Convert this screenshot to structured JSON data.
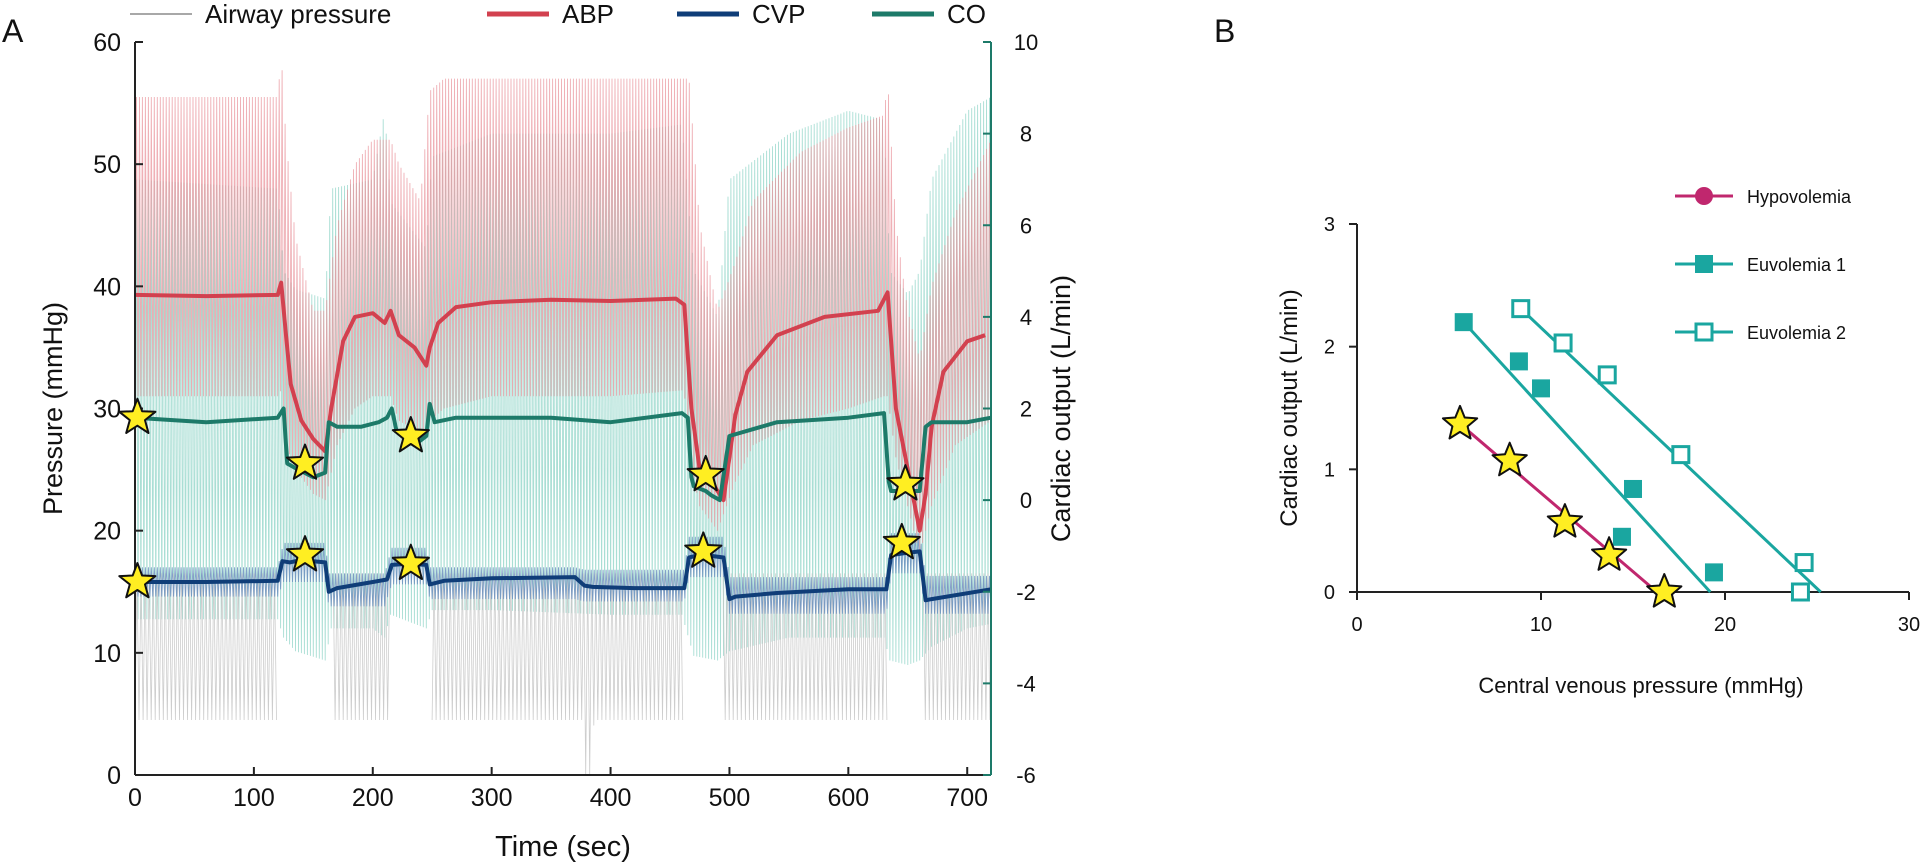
{
  "panels": {
    "a": "A",
    "b": "B"
  },
  "chart_data": [
    {
      "id": "A",
      "type": "line",
      "legend": {
        "placement": "top",
        "items": [
          {
            "label": "Airway pressure",
            "color": "#a8a8a8"
          },
          {
            "label": "ABP",
            "color": "#d2414f"
          },
          {
            "label": "CVP",
            "color": "#0f3d78"
          },
          {
            "label": "CO",
            "color": "#1d7a69"
          }
        ]
      },
      "xlabel": "Time (sec)",
      "ylabel": "Pressure (mmHg)",
      "y2label": "Cardiac output (L/min)",
      "xlim": [
        0,
        720
      ],
      "ylim": [
        0,
        60
      ],
      "y2lim": [
        -6,
        10
      ],
      "xticks": [
        "0",
        "100",
        "200",
        "300",
        "400",
        "500",
        "600",
        "700"
      ],
      "yticks": [
        "0",
        "10",
        "20",
        "30",
        "40",
        "50",
        "60"
      ],
      "y2ticks": [
        "-6",
        "-4",
        "-2",
        "0",
        "2",
        "4",
        "6",
        "8",
        "10"
      ],
      "series": [
        {
          "name": "ABP",
          "axis": "left",
          "color": "#d2414f",
          "x": [
            0,
            60,
            120,
            123,
            127,
            131,
            140,
            150,
            160,
            165,
            175,
            185,
            200,
            210,
            215,
            222,
            235,
            245,
            248,
            255,
            270,
            300,
            350,
            400,
            455,
            462,
            468,
            475,
            485,
            495,
            505,
            515,
            540,
            580,
            625,
            633,
            640,
            650,
            660,
            665,
            670,
            680,
            700,
            715
          ],
          "y": [
            39.3,
            39.2,
            39.3,
            40.3,
            36,
            32,
            29,
            27.5,
            26.5,
            30,
            35.5,
            37.5,
            37.8,
            37,
            38,
            36,
            35,
            33.5,
            35,
            37,
            38.3,
            38.7,
            38.9,
            38.8,
            39,
            38.5,
            30,
            25,
            24,
            22.5,
            29.5,
            33,
            36,
            37.5,
            38,
            39.5,
            30,
            25,
            20,
            23,
            28.5,
            33,
            35.5,
            36
          ]
        },
        {
          "name": "CVP",
          "axis": "left",
          "color": "#0f3d78",
          "x": [
            0,
            60,
            120,
            124,
            130,
            140,
            150,
            160,
            163,
            170,
            200,
            212,
            216,
            230,
            245,
            248,
            260,
            300,
            370,
            378,
            385,
            420,
            462,
            466,
            470,
            480,
            495,
            500,
            505,
            540,
            600,
            632,
            636,
            650,
            660,
            665,
            670,
            720
          ],
          "y": [
            15.8,
            15.8,
            15.9,
            17.5,
            17.4,
            17.6,
            17.5,
            17.4,
            15,
            15.3,
            15.8,
            16,
            17.2,
            17.3,
            17.2,
            15.6,
            15.9,
            16.1,
            16.2,
            15.5,
            15.4,
            15.3,
            15.3,
            17.8,
            17.9,
            18,
            17.8,
            14.4,
            14.6,
            14.9,
            15.2,
            15.2,
            18,
            18.2,
            18.3,
            14.3,
            14.4,
            15.2
          ]
        },
        {
          "name": "CO",
          "axis": "right",
          "color": "#1d7a69",
          "x": [
            0,
            60,
            120,
            125,
            128,
            135,
            150,
            160,
            163,
            170,
            190,
            205,
            212,
            216,
            220,
            235,
            245,
            248,
            252,
            270,
            300,
            350,
            400,
            460,
            465,
            468,
            470,
            480,
            485,
            492,
            500,
            540,
            600,
            630,
            634,
            636,
            645,
            660,
            665,
            670,
            700,
            720
          ],
          "y": [
            1.8,
            1.7,
            1.8,
            2,
            0.8,
            0.7,
            0.5,
            0.6,
            1.7,
            1.6,
            1.6,
            1.7,
            1.8,
            2,
            1.5,
            1.2,
            1.4,
            2.1,
            1.7,
            1.8,
            1.8,
            1.8,
            1.7,
            1.9,
            1.8,
            0.5,
            0.3,
            0.2,
            0.1,
            0,
            1.4,
            1.7,
            1.8,
            1.9,
            0.4,
            0.2,
            0.2,
            0.2,
            1.6,
            1.7,
            1.7,
            1.8
          ]
        }
      ],
      "bands": [
        {
          "name": "ABP",
          "color": "#e9959e",
          "x": [
            0,
            120,
            123,
            127,
            135,
            150,
            160,
            170,
            185,
            200,
            215,
            222,
            240,
            248,
            260,
            300,
            350,
            400,
            462,
            466,
            475,
            490,
            505,
            520,
            560,
            600,
            630,
            633,
            640,
            650,
            660,
            670,
            690,
            720
          ],
          "lo": [
            31,
            31,
            31.5,
            27,
            25,
            23,
            22.5,
            27,
            30,
            31,
            31,
            29,
            28,
            29,
            30,
            31,
            31,
            31,
            31.5,
            26,
            22,
            20,
            24,
            27,
            29,
            30,
            31,
            31,
            26,
            22,
            18,
            22,
            27,
            29
          ],
          "hi": [
            55.5,
            55.5,
            59,
            52,
            44,
            38,
            38,
            45,
            50,
            52,
            52,
            50,
            47,
            56,
            57,
            57,
            57,
            57,
            57,
            57,
            45,
            38,
            42,
            47,
            51,
            53,
            54,
            57,
            45,
            38,
            34,
            40,
            46,
            52
          ]
        },
        {
          "name": "CVP",
          "color": "#6d91c0",
          "x": [
            0,
            120,
            125,
            160,
            163,
            210,
            216,
            245,
            248,
            370,
            378,
            462,
            466,
            495,
            500,
            632,
            636,
            660,
            665,
            720
          ],
          "lo": [
            14.6,
            14.6,
            15.8,
            15.8,
            13.8,
            13.8,
            15.6,
            15.6,
            14.4,
            14.4,
            14.2,
            14.2,
            16.2,
            16.2,
            13.2,
            13.2,
            16.5,
            16.5,
            13.2,
            13.2
          ],
          "hi": [
            17,
            17,
            19,
            19,
            16.5,
            16.5,
            18.6,
            18.6,
            17,
            17,
            16.8,
            16.8,
            19.5,
            19.5,
            16.2,
            16.2,
            19.8,
            19.8,
            16.3,
            16.3
          ]
        },
        {
          "name": "CO",
          "color": "#9ad8cd",
          "x": [
            0,
            120,
            125,
            135,
            160,
            165,
            200,
            210,
            215,
            245,
            250,
            300,
            400,
            460,
            470,
            490,
            500,
            550,
            600,
            630,
            635,
            650,
            660,
            670,
            700,
            720
          ],
          "lo": [
            -2.6,
            -2.6,
            -3,
            -3.3,
            -3.5,
            -2.8,
            -2.8,
            -3,
            -2.5,
            -2.8,
            -2.4,
            -2.4,
            -2.5,
            -2.5,
            -3.4,
            -3.5,
            -3.3,
            -3,
            -3,
            -3,
            -3.5,
            -3.6,
            -3.5,
            -3.2,
            -2.8,
            -2.7
          ],
          "hi": [
            7,
            6.8,
            5,
            4.6,
            4.4,
            6.8,
            7,
            8.5,
            6.5,
            5.5,
            7.5,
            8,
            8,
            8.2,
            5,
            4,
            7,
            8,
            8.5,
            8.3,
            5,
            4.5,
            5,
            7,
            8.5,
            8.8
          ]
        },
        {
          "name": "Airway pressure",
          "color": "#c4c4c4",
          "x": [
            0,
            120,
            121,
            164,
            165,
            215,
            216,
            248,
            249,
            378,
            379,
            385,
            386,
            462,
            463,
            493,
            494,
            634,
            635,
            662,
            663,
            720
          ],
          "lo": [
            4.5,
            4.5,
            null,
            null,
            4.5,
            4.5,
            null,
            null,
            4.5,
            4.5,
            0,
            0,
            4.5,
            4.5,
            null,
            null,
            4.5,
            4.5,
            null,
            null,
            4.5,
            4.5
          ],
          "hi": [
            16.5,
            16.5,
            null,
            null,
            16.5,
            16.5,
            null,
            null,
            16.5,
            16.5,
            16.5,
            16.5,
            16.5,
            16.5,
            null,
            null,
            16.5,
            16.5,
            null,
            null,
            16.5,
            16.5
          ]
        }
      ],
      "stars": [
        {
          "axis": "right",
          "x": 2,
          "y": 1.8
        },
        {
          "axis": "right",
          "x": 143,
          "y": 0.8
        },
        {
          "axis": "right",
          "x": 232,
          "y": 1.4
        },
        {
          "axis": "right",
          "x": 480,
          "y": 0.55
        },
        {
          "axis": "right",
          "x": 648,
          "y": 0.35
        },
        {
          "axis": "left",
          "x": 2,
          "y": 15.8
        },
        {
          "axis": "left",
          "x": 143,
          "y": 18
        },
        {
          "axis": "left",
          "x": 232,
          "y": 17.3
        },
        {
          "axis": "left",
          "x": 478,
          "y": 18.3
        },
        {
          "axis": "left",
          "x": 645,
          "y": 19
        }
      ]
    },
    {
      "id": "B",
      "type": "scatter",
      "xlabel": "Central venous pressure (mmHg)",
      "ylabel": "Cardiac output (L/min)",
      "xlim": [
        0,
        30
      ],
      "ylim": [
        0,
        3
      ],
      "xticks": [
        "0",
        "10",
        "20",
        "30"
      ],
      "yticks": [
        "0",
        "1",
        "2",
        "3"
      ],
      "legend": {
        "placement": "top-right"
      },
      "series": [
        {
          "name": "Hypovolemia",
          "color": "#c0276e",
          "marker": "circle",
          "points": [
            [
              5.6,
              1.37
            ],
            [
              8.3,
              1.07
            ],
            [
              11.3,
              0.57
            ],
            [
              13.7,
              0.3
            ],
            [
              16.7,
              0.0
            ]
          ],
          "fit": [
            [
              5.6,
              1.37
            ],
            [
              16.3,
              0.0
            ]
          ]
        },
        {
          "name": "Euvolemia 1",
          "color": "#1aa6a0",
          "marker": "square",
          "points": [
            [
              5.8,
              2.2
            ],
            [
              8.8,
              1.88
            ],
            [
              10.0,
              1.66
            ],
            [
              14.4,
              0.45
            ],
            [
              15.0,
              0.84
            ],
            [
              19.4,
              0.16
            ]
          ],
          "fit": [
            [
              5.8,
              2.2
            ],
            [
              19.2,
              0.0
            ]
          ]
        },
        {
          "name": "Euvolemia 2",
          "color": "#1aa6a0",
          "marker": "square-open",
          "points": [
            [
              8.9,
              2.31
            ],
            [
              11.2,
              2.03
            ],
            [
              13.6,
              1.77
            ],
            [
              17.6,
              1.12
            ],
            [
              24.3,
              0.24
            ],
            [
              24.1,
              0.0
            ]
          ],
          "fit": [
            [
              8.9,
              2.31
            ],
            [
              25.2,
              0.0
            ]
          ]
        }
      ],
      "stars": [
        [
          5.6,
          1.37
        ],
        [
          8.3,
          1.07
        ],
        [
          11.3,
          0.57
        ],
        [
          13.7,
          0.3
        ],
        [
          16.7,
          0.0
        ]
      ]
    }
  ]
}
